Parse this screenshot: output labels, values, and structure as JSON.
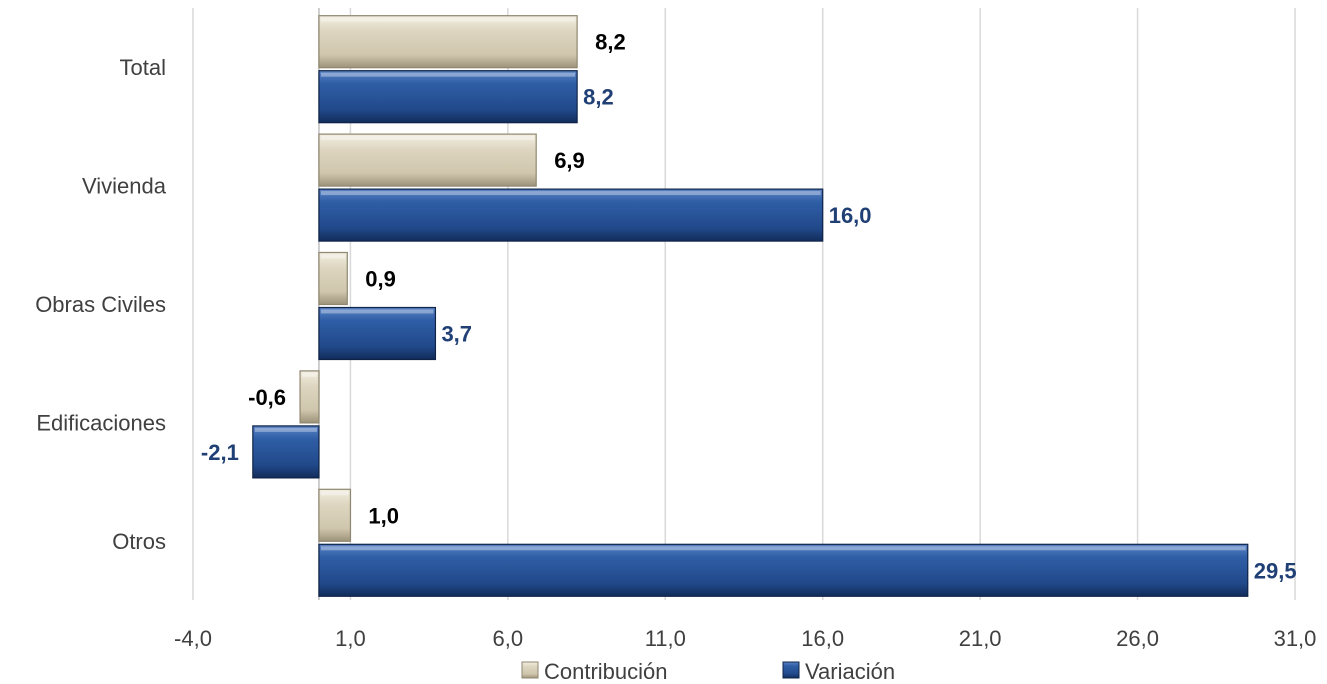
{
  "chart_data": {
    "type": "bar",
    "orientation": "horizontal",
    "categories": [
      "Total",
      "Vivienda",
      "Obras Civiles",
      "Edificaciones",
      "Otros"
    ],
    "series": [
      {
        "name": "Contribución",
        "values": [
          8.2,
          6.9,
          0.9,
          -0.6,
          1.0
        ],
        "labels": [
          "8,2",
          "6,9",
          "0,9",
          "-0,6",
          "1,0"
        ],
        "color": "#d8d0b8",
        "label_color": "#000000"
      },
      {
        "name": "Variación",
        "values": [
          8.2,
          16.0,
          3.7,
          -2.1,
          29.5
        ],
        "labels": [
          "8,2",
          "16,0",
          "3,7",
          "-2,1",
          "29,5"
        ],
        "color": "#2a5597",
        "label_color": "#1f3f75"
      }
    ],
    "xlim": [
      -4.0,
      31.0
    ],
    "xticks": [
      -4.0,
      1.0,
      6.0,
      11.0,
      16.0,
      21.0,
      26.0,
      31.0
    ],
    "xtick_labels": [
      "-4,0",
      "1,0",
      "6,0",
      "11,0",
      "16,0",
      "21,0",
      "26,0",
      "31,0"
    ],
    "grid": "vertical",
    "legend_position": "bottom"
  }
}
